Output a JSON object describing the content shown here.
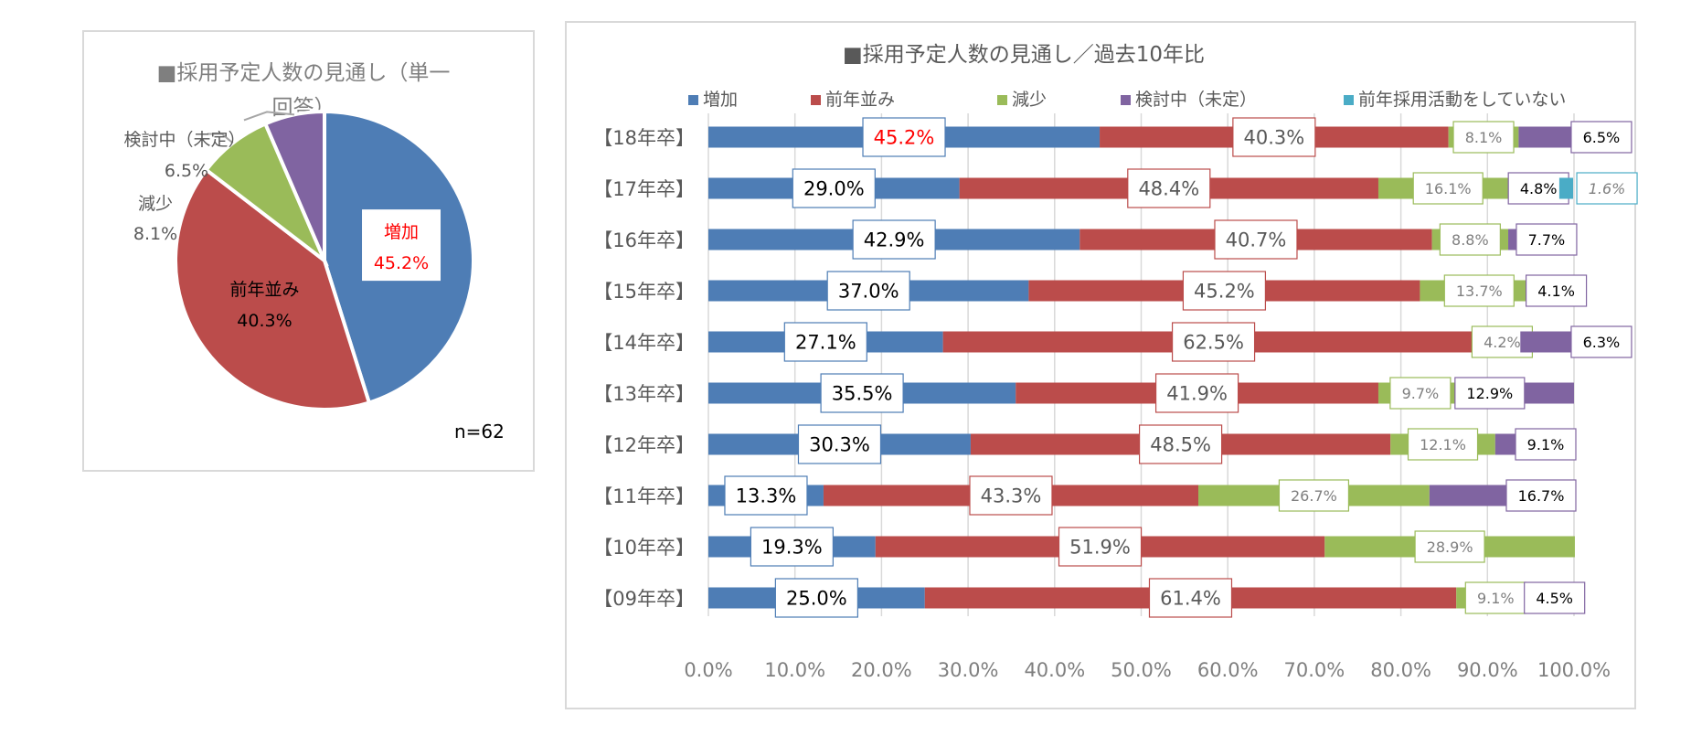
{
  "colors": {
    "increase": "#4e7db5",
    "same": "#bb4c4b",
    "decrease": "#9abb59",
    "undecided": "#8064a1",
    "none": "#4aacc6",
    "highlight": "#ff0000"
  },
  "chart_data": [
    {
      "type": "pie",
      "title": "■採用予定人数の見通し（単一回答）",
      "title_line1": "■採用予定人数の見通し（単一",
      "title_line2": "回答）",
      "note": "n=62",
      "slices": [
        {
          "label": "増加",
          "value": 45.2,
          "display": "45.2%",
          "color": "#4e7db5"
        },
        {
          "label": "前年並み",
          "value": 40.3,
          "display": "40.3%",
          "color": "#bb4c4b"
        },
        {
          "label": "減少",
          "value": 8.1,
          "display": "8.1%",
          "color": "#9abb59"
        },
        {
          "label": "検討中（未定）",
          "value": 6.5,
          "display": "6.5%",
          "color": "#8064a1"
        }
      ]
    },
    {
      "type": "bar",
      "orientation": "horizontal",
      "stacked": true,
      "title": "■採用予定人数の見通し／過去10年比",
      "legend_position": "top",
      "categories": [
        "【18年卒】",
        "【17年卒】",
        "【16年卒】",
        "【15年卒】",
        "【14年卒】",
        "【13年卒】",
        "【12年卒】",
        "【11年卒】",
        "【10年卒】",
        "【09年卒】"
      ],
      "series": [
        {
          "name": "増加",
          "color": "#4e7db5",
          "values": [
            45.2,
            29.0,
            42.9,
            37.0,
            27.1,
            35.5,
            30.3,
            13.3,
            19.3,
            25.0
          ],
          "labels": [
            "45.2%",
            "29.0%",
            "42.9%",
            "37.0%",
            "27.1%",
            "35.5%",
            "30.3%",
            "13.3%",
            "19.3%",
            "25.0%"
          ]
        },
        {
          "name": "前年並み",
          "color": "#bb4c4b",
          "values": [
            40.3,
            48.4,
            40.7,
            45.2,
            62.5,
            41.9,
            48.5,
            43.3,
            51.9,
            61.4
          ],
          "labels": [
            "40.3%",
            "48.4%",
            "40.7%",
            "45.2%",
            "62.5%",
            "41.9%",
            "48.5%",
            "43.3%",
            "51.9%",
            "61.4%"
          ]
        },
        {
          "name": "減少",
          "color": "#9abb59",
          "values": [
            8.1,
            16.1,
            8.8,
            13.7,
            4.2,
            9.7,
            12.1,
            26.7,
            28.9,
            9.1
          ],
          "labels": [
            "8.1%",
            "16.1%",
            "8.8%",
            "13.7%",
            "4.2%",
            "9.7%",
            "12.1%",
            "26.7%",
            "28.9%",
            "9.1%"
          ]
        },
        {
          "name": "検討中（未定）",
          "color": "#8064a1",
          "values": [
            6.5,
            4.8,
            7.7,
            4.1,
            6.3,
            12.9,
            9.1,
            16.7,
            0,
            4.5
          ],
          "labels": [
            "6.5%",
            "4.8%",
            "7.7%",
            "4.1%",
            "6.3%",
            "12.9%",
            "9.1%",
            "16.7%",
            "",
            "4.5%"
          ]
        },
        {
          "name": "前年採用活動をしていない",
          "color": "#4aacc6",
          "values": [
            0,
            1.6,
            0,
            0,
            0,
            0,
            0,
            0,
            0,
            0
          ],
          "labels": [
            "",
            "1.6%",
            "",
            "",
            "",
            "",
            "",
            "",
            "",
            ""
          ]
        }
      ],
      "xlim": [
        0,
        100
      ],
      "xticks": [
        "0.0%",
        "10.0%",
        "20.0%",
        "30.0%",
        "40.0%",
        "50.0%",
        "60.0%",
        "70.0%",
        "80.0%",
        "90.0%",
        "100.0%"
      ],
      "grid": true
    }
  ]
}
